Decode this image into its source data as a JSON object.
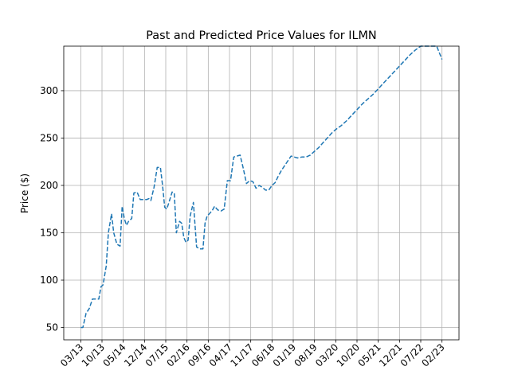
{
  "chart_data": {
    "type": "line",
    "title": "Past and Predicted Price Values for ILMN",
    "xlabel": "",
    "ylabel": "Price ($)",
    "grid": true,
    "ylim": [
      37,
      347
    ],
    "y_ticks": [
      50,
      100,
      150,
      200,
      250,
      300
    ],
    "x_ticks": [
      "03/13",
      "10/13",
      "05/14",
      "12/14",
      "07/15",
      "02/16",
      "09/16",
      "04/17",
      "11/17",
      "06/18",
      "01/19",
      "08/19",
      "03/20",
      "10/20",
      "05/21",
      "12/21",
      "07/22",
      "02/23"
    ],
    "x_index_range": [
      -0.8,
      17.8
    ],
    "colors": {
      "line": "#1f77b4",
      "grid": "#b0b0b0",
      "axes": "#000000"
    },
    "series": [
      {
        "x": [
          0.0,
          0.1,
          0.25,
          0.4,
          0.55,
          0.7,
          0.85,
          0.95,
          1.05,
          1.2,
          1.3,
          1.45,
          1.55,
          1.7,
          1.85,
          1.95,
          2.05,
          2.15,
          2.25,
          2.4,
          2.5,
          2.65,
          2.8,
          2.95,
          3.1,
          3.2,
          3.3,
          3.45,
          3.6,
          3.75,
          3.85,
          3.95,
          4.05,
          4.15,
          4.3,
          4.4,
          4.5,
          4.65,
          4.75,
          4.85,
          4.95,
          5.05,
          5.15,
          5.3,
          5.45,
          5.6,
          5.75,
          5.85,
          5.95,
          6.05,
          6.2,
          6.3,
          6.45,
          6.6,
          6.75,
          6.9,
          7.05,
          7.2,
          7.35,
          7.5,
          7.65,
          7.8,
          7.95,
          8.1,
          8.25,
          8.4,
          8.55,
          8.7,
          8.85,
          9.0,
          9.15,
          9.3,
          9.45,
          9.6,
          9.75,
          9.9,
          10.05,
          10.2,
          10.4,
          10.6,
          10.8,
          11.0,
          11.2,
          11.4,
          11.6,
          11.8,
          12.0,
          12.25,
          12.5,
          12.75,
          13.0,
          13.25,
          13.5,
          13.75,
          14.0,
          14.25,
          14.5,
          14.75,
          15.0,
          15.25,
          15.5,
          15.75,
          16.0,
          16.25,
          16.5,
          16.75,
          17.0
        ],
        "y": [
          50,
          50,
          65,
          70,
          80,
          80,
          80,
          93,
          95,
          115,
          150,
          170,
          150,
          138,
          136,
          178,
          165,
          158,
          162,
          165,
          192,
          193,
          185,
          185,
          185,
          186,
          184,
          198,
          219,
          219,
          200,
          177,
          175,
          182,
          193,
          192,
          150,
          162,
          160,
          145,
          140,
          142,
          168,
          182,
          135,
          133,
          133,
          160,
          168,
          170,
          174,
          178,
          174,
          173,
          175,
          205,
          205,
          230,
          231,
          232,
          218,
          202,
          205,
          204,
          197,
          200,
          198,
          195,
          195,
          200,
          203,
          210,
          216,
          221,
          226,
          231,
          230,
          229,
          230,
          230,
          232,
          236,
          240,
          245,
          250,
          255,
          259,
          263,
          268,
          274,
          280,
          286,
          291,
          296,
          302,
          308,
          314,
          320,
          326,
          332,
          338,
          343,
          350,
          356,
          362,
          368,
          333
        ]
      }
    ]
  }
}
